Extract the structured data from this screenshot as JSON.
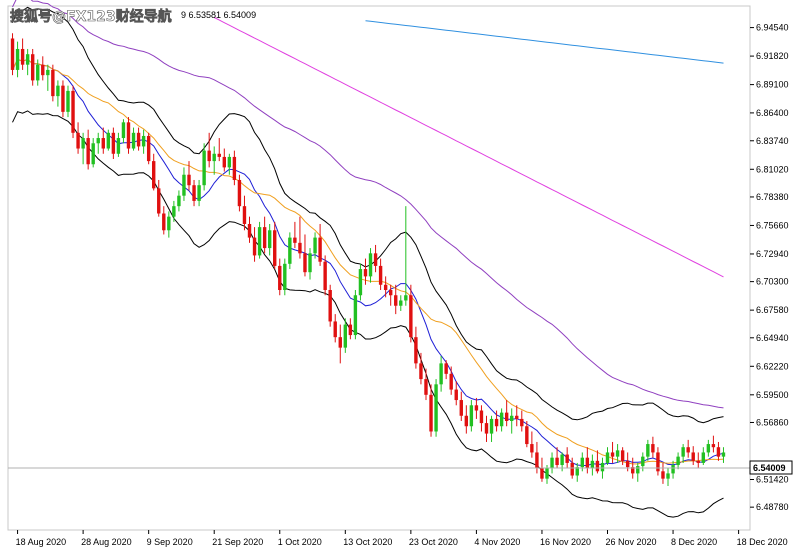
{
  "watermark": "搜狐号@FX123财经导航",
  "header_values": "9 6.53581 6.54009",
  "chart_data": {
    "type": "candlestick",
    "title": "",
    "xlabel": "",
    "ylabel": "",
    "ylim": [
      6.466,
      6.966
    ],
    "grid": false,
    "legend": "none",
    "current_price": "6.54009",
    "y_ticks": [
      "6.94540",
      "6.91820",
      "6.89100",
      "6.86400",
      "6.83740",
      "6.81020",
      "6.78380",
      "6.75660",
      "6.72940",
      "6.70300",
      "6.67580",
      "6.64940",
      "6.62220",
      "6.59500",
      "6.56860",
      "6.51420",
      "6.48780"
    ],
    "x_ticks": [
      "18 Aug 2020",
      "28 Aug 2020",
      "9 Sep 2020",
      "21 Sep 2020",
      "1 Oct 2020",
      "13 Oct 2020",
      "23 Oct 2020",
      "4 Nov 2020",
      "16 Nov 2020",
      "26 Nov 2020",
      "8 Dec 2020",
      "18 Dec 2020"
    ],
    "x_tick_index": [
      1,
      14,
      27,
      40,
      53,
      66,
      79,
      92,
      105,
      118,
      131,
      144
    ],
    "ohlc": [
      [
        6.935,
        6.94,
        6.9,
        6.905
      ],
      [
        6.905,
        6.932,
        6.898,
        6.925
      ],
      [
        6.925,
        6.935,
        6.905,
        6.91
      ],
      [
        6.91,
        6.925,
        6.9,
        6.92
      ],
      [
        6.92,
        6.925,
        6.89,
        6.895
      ],
      [
        6.895,
        6.915,
        6.89,
        6.91
      ],
      [
        6.91,
        6.918,
        6.895,
        6.9
      ],
      [
        6.9,
        6.91,
        6.885,
        6.905
      ],
      [
        6.905,
        6.91,
        6.875,
        6.88
      ],
      [
        6.88,
        6.895,
        6.87,
        6.89
      ],
      [
        6.89,
        6.895,
        6.86,
        6.865
      ],
      [
        6.865,
        6.89,
        6.86,
        6.885
      ],
      [
        6.885,
        6.89,
        6.84,
        6.845
      ],
      [
        6.845,
        6.855,
        6.825,
        6.83
      ],
      [
        6.83,
        6.845,
        6.815,
        6.84
      ],
      [
        6.84,
        6.848,
        6.81,
        6.815
      ],
      [
        6.815,
        6.84,
        6.812,
        6.835
      ],
      [
        6.835,
        6.845,
        6.825,
        6.84
      ],
      [
        6.84,
        6.85,
        6.825,
        6.83
      ],
      [
        6.83,
        6.848,
        6.828,
        6.845
      ],
      [
        6.845,
        6.85,
        6.82,
        6.825
      ],
      [
        6.825,
        6.845,
        6.822,
        6.84
      ],
      [
        6.84,
        6.858,
        6.835,
        6.855
      ],
      [
        6.855,
        6.86,
        6.825,
        6.83
      ],
      [
        6.83,
        6.85,
        6.828,
        6.845
      ],
      [
        6.845,
        6.85,
        6.828,
        6.832
      ],
      [
        6.832,
        6.848,
        6.825,
        6.842
      ],
      [
        6.842,
        6.845,
        6.815,
        6.818
      ],
      [
        6.818,
        6.825,
        6.79,
        6.792
      ],
      [
        6.792,
        6.8,
        6.765,
        6.768
      ],
      [
        6.768,
        6.775,
        6.748,
        6.752
      ],
      [
        6.752,
        6.77,
        6.745,
        6.765
      ],
      [
        6.765,
        6.78,
        6.76,
        6.775
      ],
      [
        6.775,
        6.79,
        6.77,
        6.785
      ],
      [
        6.785,
        6.812,
        6.78,
        6.805
      ],
      [
        6.805,
        6.818,
        6.79,
        6.795
      ],
      [
        6.795,
        6.8,
        6.775,
        6.78
      ],
      [
        6.78,
        6.8,
        6.775,
        6.795
      ],
      [
        6.795,
        6.835,
        6.79,
        6.828
      ],
      [
        6.828,
        6.845,
        6.812,
        6.818
      ],
      [
        6.818,
        6.832,
        6.805,
        6.825
      ],
      [
        6.825,
        6.84,
        6.818,
        6.822
      ],
      [
        6.822,
        6.83,
        6.808,
        6.812
      ],
      [
        6.812,
        6.825,
        6.805,
        6.822
      ],
      [
        6.822,
        6.828,
        6.795,
        6.8
      ],
      [
        6.8,
        6.805,
        6.77,
        6.775
      ],
      [
        6.775,
        6.785,
        6.752,
        6.758
      ],
      [
        6.758,
        6.765,
        6.74,
        6.745
      ],
      [
        6.745,
        6.755,
        6.722,
        6.728
      ],
      [
        6.728,
        6.76,
        6.725,
        6.755
      ],
      [
        6.755,
        6.765,
        6.73,
        6.735
      ],
      [
        6.735,
        6.758,
        6.728,
        6.752
      ],
      [
        6.752,
        6.76,
        6.715,
        6.718
      ],
      [
        6.718,
        6.725,
        6.69,
        6.695
      ],
      [
        6.695,
        6.725,
        6.69,
        6.72
      ],
      [
        6.72,
        6.75,
        6.715,
        6.745
      ],
      [
        6.745,
        6.76,
        6.735,
        6.74
      ],
      [
        6.74,
        6.765,
        6.725,
        6.73
      ],
      [
        6.73,
        6.748,
        6.708,
        6.712
      ],
      [
        6.712,
        6.735,
        6.705,
        6.73
      ],
      [
        6.73,
        6.75,
        6.725,
        6.745
      ],
      [
        6.745,
        6.758,
        6.718,
        6.722
      ],
      [
        6.722,
        6.728,
        6.69,
        6.695
      ],
      [
        6.695,
        6.7,
        6.66,
        6.665
      ],
      [
        6.665,
        6.672,
        6.645,
        6.65
      ],
      [
        6.65,
        6.662,
        6.625,
        6.64
      ],
      [
        6.64,
        6.668,
        6.635,
        6.662
      ],
      [
        6.662,
        6.668,
        6.648,
        6.652
      ],
      [
        6.652,
        6.695,
        6.648,
        6.69
      ],
      [
        6.69,
        6.72,
        6.685,
        6.715
      ],
      [
        6.715,
        6.725,
        6.7,
        6.708
      ],
      [
        6.708,
        6.735,
        6.702,
        6.73
      ],
      [
        6.73,
        6.738,
        6.712,
        6.718
      ],
      [
        6.718,
        6.725,
        6.695,
        6.7
      ],
      [
        6.7,
        6.708,
        6.688,
        6.695
      ],
      [
        6.695,
        6.7,
        6.68,
        6.69
      ],
      [
        6.69,
        6.7,
        6.672,
        6.68
      ],
      [
        6.68,
        6.69,
        6.675,
        6.685
      ],
      [
        6.685,
        6.775,
        6.68,
        6.69
      ],
      [
        6.69,
        6.7,
        6.645,
        6.65
      ],
      [
        6.65,
        6.66,
        6.62,
        6.625
      ],
      [
        6.625,
        6.635,
        6.605,
        6.61
      ],
      [
        6.61,
        6.62,
        6.59,
        6.595
      ],
      [
        6.595,
        6.605,
        6.555,
        6.56
      ],
      [
        6.56,
        6.61,
        6.555,
        6.605
      ],
      [
        6.605,
        6.632,
        6.598,
        6.625
      ],
      [
        6.625,
        6.628,
        6.61,
        6.615
      ],
      [
        6.615,
        6.622,
        6.595,
        6.6
      ],
      [
        6.6,
        6.608,
        6.585,
        6.59
      ],
      [
        6.59,
        6.598,
        6.57,
        6.575
      ],
      [
        6.575,
        6.585,
        6.558,
        6.565
      ],
      [
        6.565,
        6.59,
        6.56,
        6.585
      ],
      [
        6.585,
        6.592,
        6.572,
        6.58
      ],
      [
        6.58,
        6.585,
        6.56,
        6.568
      ],
      [
        6.568,
        6.575,
        6.55,
        6.558
      ],
      [
        6.558,
        6.575,
        6.55,
        6.572
      ],
      [
        6.572,
        6.58,
        6.56,
        6.565
      ],
      [
        6.565,
        6.582,
        6.56,
        6.578
      ],
      [
        6.578,
        6.59,
        6.565,
        6.57
      ],
      [
        6.57,
        6.582,
        6.558,
        6.575
      ],
      [
        6.575,
        6.585,
        6.565,
        6.572
      ],
      [
        6.572,
        6.58,
        6.56,
        6.565
      ],
      [
        6.565,
        6.57,
        6.545,
        6.548
      ],
      [
        6.548,
        6.56,
        6.535,
        6.54
      ],
      [
        6.54,
        6.55,
        6.52,
        6.525
      ],
      [
        6.525,
        6.535,
        6.512,
        6.515
      ],
      [
        6.515,
        6.528,
        6.51,
        6.525
      ],
      [
        6.525,
        6.54,
        6.52,
        6.535
      ],
      [
        6.535,
        6.545,
        6.525,
        6.528
      ],
      [
        6.528,
        6.54,
        6.522,
        6.538
      ],
      [
        6.538,
        6.545,
        6.525,
        6.53
      ],
      [
        6.53,
        6.535,
        6.515,
        6.518
      ],
      [
        6.518,
        6.53,
        6.512,
        6.526
      ],
      [
        6.526,
        6.54,
        6.522,
        6.535
      ],
      [
        6.535,
        6.545,
        6.52,
        6.525
      ],
      [
        6.525,
        6.538,
        6.518,
        6.532
      ],
      [
        6.532,
        6.542,
        6.52,
        6.522
      ],
      [
        6.522,
        6.535,
        6.515,
        6.53
      ],
      [
        6.53,
        6.545,
        6.528,
        6.54
      ],
      [
        6.54,
        6.55,
        6.53,
        6.536
      ],
      [
        6.536,
        6.548,
        6.53,
        6.542
      ],
      [
        6.542,
        6.545,
        6.528,
        6.532
      ],
      [
        6.532,
        6.54,
        6.522,
        6.526
      ],
      [
        6.526,
        6.535,
        6.515,
        6.52
      ],
      [
        6.52,
        6.53,
        6.512,
        6.527
      ],
      [
        6.527,
        6.54,
        6.522,
        6.536
      ],
      [
        6.536,
        6.552,
        6.532,
        6.548
      ],
      [
        6.548,
        6.555,
        6.535,
        6.54
      ],
      [
        6.54,
        6.545,
        6.518,
        6.522
      ],
      [
        6.522,
        6.53,
        6.51,
        6.515
      ],
      [
        6.515,
        6.525,
        6.508,
        6.52
      ],
      [
        6.52,
        6.532,
        6.515,
        6.528
      ],
      [
        6.528,
        6.54,
        6.524,
        6.536
      ],
      [
        6.536,
        6.548,
        6.53,
        6.545
      ],
      [
        6.545,
        6.552,
        6.535,
        6.54
      ],
      [
        6.54,
        6.546,
        6.528,
        6.532
      ],
      [
        6.532,
        6.54,
        6.525,
        6.53
      ],
      [
        6.53,
        6.545,
        6.528,
        6.54
      ],
      [
        6.54,
        6.552,
        6.536,
        6.548
      ],
      [
        6.548,
        6.556,
        6.54,
        6.545
      ],
      [
        6.545,
        6.55,
        6.532,
        6.536
      ],
      [
        6.536,
        6.545,
        6.53,
        6.54
      ]
    ],
    "indicator_colors": {
      "ma_short": "#1f1fd6",
      "ma_mid": "#f0a020",
      "ma_long1": "#9040c0",
      "ma_long2": "#e040e0",
      "ma_long3": "#3090e0",
      "envelope": "#000000",
      "bull": "#22c022",
      "bear": "#e01010"
    }
  }
}
